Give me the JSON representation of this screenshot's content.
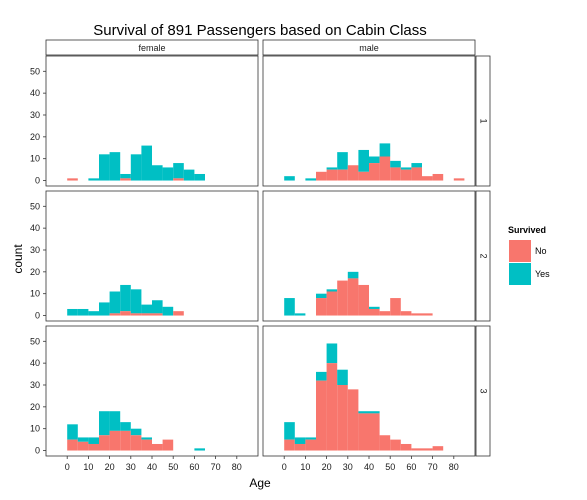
{
  "chart_data": {
    "type": "histogram",
    "title": "Survival of 891 Passengers based on Cabin Class",
    "xlabel": "Age",
    "ylabel": "count",
    "xlim": [
      -10,
      90
    ],
    "ylim": [
      -2.5,
      57
    ],
    "x_ticks": [
      0,
      10,
      20,
      30,
      40,
      50,
      60,
      70,
      80
    ],
    "y_ticks": [
      0,
      10,
      20,
      30,
      40,
      50
    ],
    "bin_width": 5,
    "bin_starts": [
      0,
      5,
      10,
      15,
      20,
      25,
      30,
      35,
      40,
      45,
      50,
      55,
      60,
      65,
      70,
      75,
      80
    ],
    "col_facets": [
      "female",
      "male"
    ],
    "row_facets": [
      "1",
      "2",
      "3"
    ],
    "legend": {
      "title": "Survived",
      "position": "right",
      "entries": [
        {
          "label": "No",
          "color": "#F8766D"
        },
        {
          "label": "Yes",
          "color": "#00BFC4"
        }
      ]
    },
    "stacking": "No stacked on bottom, Yes on top",
    "panels": [
      {
        "row": "1",
        "col": "female",
        "no": [
          1,
          0,
          0,
          0,
          0,
          1,
          0,
          0,
          0,
          0,
          1,
          0,
          0,
          0,
          0,
          0,
          0
        ],
        "total": [
          1,
          0,
          1,
          12,
          13,
          3,
          12,
          16,
          7,
          6,
          8,
          5,
          3,
          0,
          0,
          0,
          0
        ]
      },
      {
        "row": "1",
        "col": "male",
        "no": [
          0,
          0,
          0,
          4,
          5,
          5,
          7,
          4,
          8,
          11,
          6,
          5,
          6,
          2,
          3,
          0,
          1
        ],
        "total": [
          2,
          0,
          1,
          4,
          6,
          13,
          7,
          14,
          11,
          17,
          9,
          6,
          8,
          2,
          3,
          0,
          1
        ]
      },
      {
        "row": "2",
        "col": "female",
        "no": [
          0,
          0,
          0,
          0,
          1,
          2,
          1,
          1,
          1,
          0,
          2,
          0,
          0,
          0,
          0,
          0,
          0
        ],
        "total": [
          3,
          3,
          2,
          6,
          11,
          14,
          12,
          5,
          7,
          4,
          2,
          0,
          0,
          0,
          0,
          0,
          0
        ]
      },
      {
        "row": "2",
        "col": "male",
        "no": [
          0,
          0,
          0,
          8,
          11,
          16,
          17,
          14,
          3,
          2,
          8,
          2,
          1,
          1,
          0,
          0,
          0
        ],
        "total": [
          8,
          1,
          0,
          10,
          12,
          16,
          20,
          14,
          4,
          2,
          8,
          2,
          1,
          1,
          0,
          0,
          0
        ]
      },
      {
        "row": "3",
        "col": "female",
        "no": [
          5,
          4,
          3,
          7,
          9,
          9,
          7,
          5,
          3,
          5,
          0,
          0,
          0,
          0,
          0,
          0,
          0
        ],
        "total": [
          12,
          6,
          6,
          18,
          18,
          13,
          10,
          6,
          3,
          5,
          0,
          0,
          1,
          0,
          0,
          0,
          0
        ]
      },
      {
        "row": "3",
        "col": "male",
        "no": [
          5,
          3,
          5,
          32,
          40,
          30,
          28,
          17,
          17,
          7,
          5,
          3,
          1,
          1,
          2,
          0,
          0
        ],
        "total": [
          13,
          6,
          6,
          36,
          49,
          37,
          28,
          18,
          18,
          7,
          5,
          3,
          1,
          1,
          2,
          0,
          0
        ]
      }
    ]
  }
}
